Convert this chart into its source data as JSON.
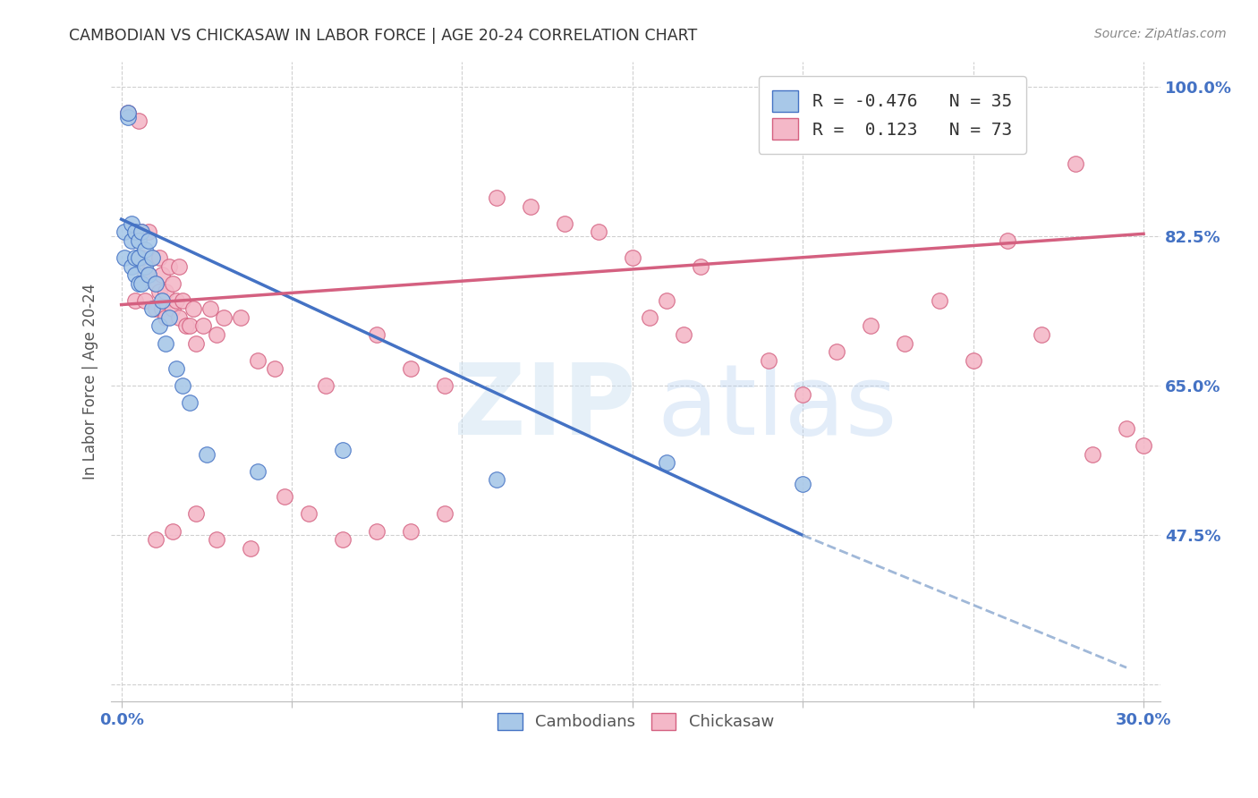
{
  "title": "CAMBODIAN VS CHICKASAW IN LABOR FORCE | AGE 20-24 CORRELATION CHART",
  "source": "Source: ZipAtlas.com",
  "ylabel": "In Labor Force | Age 20-24",
  "R_cambodian": -0.476,
  "N_cambodian": 35,
  "R_chickasaw": 0.123,
  "N_chickasaw": 73,
  "color_cambodian": "#a8c8e8",
  "color_chickasaw": "#f4b8c8",
  "color_trend_cambodian": "#4472c4",
  "color_trend_chickasaw": "#d46080",
  "color_dashed": "#a0b8d8",
  "xlim": [
    -0.003,
    0.305
  ],
  "ylim": [
    0.28,
    1.03
  ],
  "xtick_positions": [
    0.0,
    0.05,
    0.1,
    0.15,
    0.2,
    0.25,
    0.3
  ],
  "xticklabels": [
    "0.0%",
    "",
    "",
    "",
    "",
    "",
    "30.0%"
  ],
  "ytick_positions": [
    0.3,
    0.475,
    0.65,
    0.825,
    1.0
  ],
  "ytick_labels": [
    "",
    "47.5%",
    "65.0%",
    "82.5%",
    "100.0%"
  ],
  "grid_color": "#d0d0d0",
  "background_color": "#ffffff",
  "title_color": "#333333",
  "axis_label_color": "#555555",
  "tick_label_color": "#4472c4",
  "trend_cam_x0": 0.0,
  "trend_cam_y0": 0.845,
  "trend_cam_x1": 0.2,
  "trend_cam_y1": 0.475,
  "trend_cam_ext_x1": 0.295,
  "trend_cam_ext_y1": 0.32,
  "trend_ch_x0": 0.0,
  "trend_ch_y0": 0.745,
  "trend_ch_x1": 0.3,
  "trend_ch_y1": 0.828,
  "cambodian_x": [
    0.001,
    0.001,
    0.002,
    0.002,
    0.003,
    0.003,
    0.003,
    0.004,
    0.004,
    0.004,
    0.005,
    0.005,
    0.005,
    0.006,
    0.006,
    0.007,
    0.007,
    0.008,
    0.008,
    0.009,
    0.009,
    0.01,
    0.011,
    0.012,
    0.013,
    0.014,
    0.016,
    0.018,
    0.02,
    0.025,
    0.04,
    0.065,
    0.11,
    0.16,
    0.2
  ],
  "cambodian_y": [
    0.83,
    0.8,
    0.965,
    0.97,
    0.84,
    0.82,
    0.79,
    0.83,
    0.8,
    0.78,
    0.82,
    0.8,
    0.77,
    0.83,
    0.77,
    0.81,
    0.79,
    0.82,
    0.78,
    0.8,
    0.74,
    0.77,
    0.72,
    0.75,
    0.7,
    0.73,
    0.67,
    0.65,
    0.63,
    0.57,
    0.55,
    0.575,
    0.54,
    0.56,
    0.535
  ],
  "chickasaw_x": [
    0.002,
    0.004,
    0.005,
    0.006,
    0.006,
    0.007,
    0.007,
    0.008,
    0.008,
    0.009,
    0.01,
    0.01,
    0.011,
    0.011,
    0.012,
    0.012,
    0.013,
    0.013,
    0.014,
    0.015,
    0.015,
    0.016,
    0.017,
    0.017,
    0.018,
    0.019,
    0.02,
    0.021,
    0.022,
    0.024,
    0.026,
    0.028,
    0.03,
    0.035,
    0.04,
    0.045,
    0.06,
    0.075,
    0.085,
    0.095,
    0.11,
    0.12,
    0.13,
    0.14,
    0.15,
    0.16,
    0.17,
    0.19,
    0.2,
    0.21,
    0.22,
    0.23,
    0.24,
    0.25,
    0.26,
    0.27,
    0.28,
    0.285,
    0.295,
    0.3,
    0.155,
    0.165,
    0.095,
    0.085,
    0.075,
    0.065,
    0.055,
    0.048,
    0.038,
    0.028,
    0.022,
    0.015,
    0.01
  ],
  "chickasaw_y": [
    0.97,
    0.75,
    0.96,
    0.83,
    0.8,
    0.78,
    0.75,
    0.83,
    0.78,
    0.8,
    0.77,
    0.74,
    0.8,
    0.76,
    0.78,
    0.74,
    0.76,
    0.73,
    0.79,
    0.77,
    0.74,
    0.75,
    0.79,
    0.73,
    0.75,
    0.72,
    0.72,
    0.74,
    0.7,
    0.72,
    0.74,
    0.71,
    0.73,
    0.73,
    0.68,
    0.67,
    0.65,
    0.71,
    0.67,
    0.65,
    0.87,
    0.86,
    0.84,
    0.83,
    0.8,
    0.75,
    0.79,
    0.68,
    0.64,
    0.69,
    0.72,
    0.7,
    0.75,
    0.68,
    0.82,
    0.71,
    0.91,
    0.57,
    0.6,
    0.58,
    0.73,
    0.71,
    0.5,
    0.48,
    0.48,
    0.47,
    0.5,
    0.52,
    0.46,
    0.47,
    0.5,
    0.48,
    0.47
  ]
}
